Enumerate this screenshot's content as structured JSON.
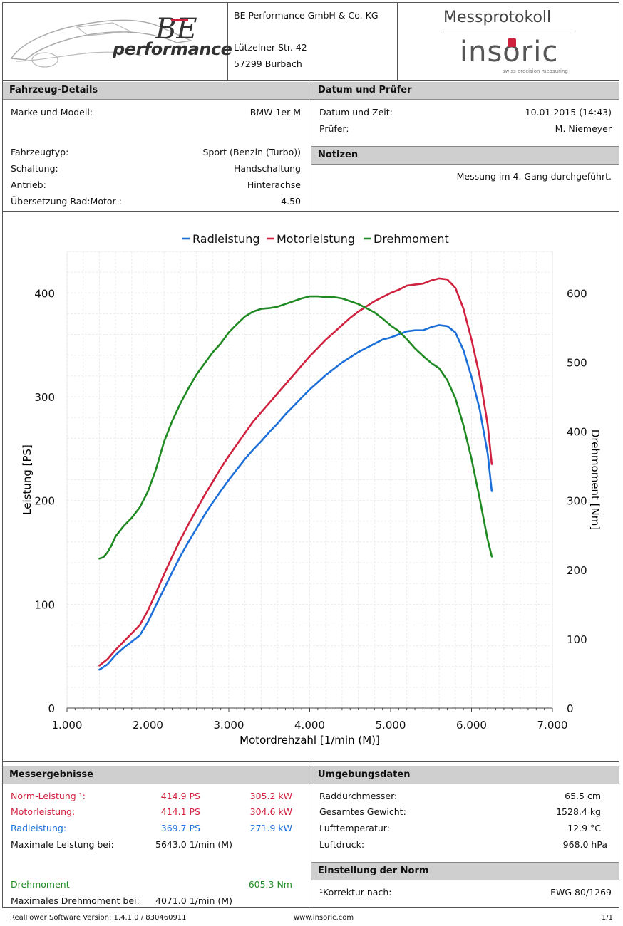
{
  "header": {
    "company_name": "BE Performance GmbH & Co. KG",
    "street": "Lützelner Str. 42",
    "city": "57299 Burbach",
    "logo_be": "BE",
    "logo_performance": "performance",
    "doc_title": "Messprotokoll",
    "brand": "insoric",
    "brand_tagline": "swiss precision measuring"
  },
  "vehicle": {
    "title": "Fahrzeug-Details",
    "make_label": "Marke und Modell:",
    "make_value": "BMW 1er M",
    "type_label": "Fahrzeugtyp:",
    "type_value": "Sport (Benzin (Turbo))",
    "gearbox_label": "Schaltung:",
    "gearbox_value": "Handschaltung",
    "drive_label": "Antrieb:",
    "drive_value": "Hinterachse",
    "ratio_label": "Übersetzung Rad:Motor :",
    "ratio_value": "4.50"
  },
  "date": {
    "title": "Datum und Prüfer",
    "datetime_label": "Datum und Zeit:",
    "datetime_value": "10.01.2015 (14:43)",
    "tester_label": "Prüfer:",
    "tester_value": "M. Niemeyer"
  },
  "notes": {
    "title": "Notizen",
    "text": "Messung im 4. Gang durchgeführt."
  },
  "chart_data": {
    "type": "line",
    "xlabel": "Motordrehzahl [1/min (M)]",
    "ylabel": "Leistung [PS]",
    "y2label": "Drehmoment [Nm]",
    "xlim": [
      1000,
      7000
    ],
    "ylim": [
      0,
      440
    ],
    "y2lim": [
      0,
      660
    ],
    "x_ticks": [
      1000,
      2000,
      3000,
      4000,
      5000,
      6000,
      7000
    ],
    "x_tick_labels": [
      "1.000",
      "2.000",
      "3.000",
      "4.000",
      "5.000",
      "6.000",
      "7.000"
    ],
    "y_ticks": [
      0,
      100,
      200,
      300,
      400
    ],
    "y_tick_labels": [
      "0",
      "100",
      "200",
      "300",
      "400"
    ],
    "y2_ticks": [
      0,
      100,
      200,
      300,
      400,
      500,
      600
    ],
    "y2_tick_labels": [
      "0",
      "100",
      "200",
      "300",
      "400",
      "500",
      "600"
    ],
    "legend_position": "top-center",
    "grid": true,
    "series": [
      {
        "name": "Radleistung",
        "color": "#1c6fd9",
        "axis": "left",
        "points": [
          [
            1400,
            37
          ],
          [
            1500,
            42
          ],
          [
            1600,
            51
          ],
          [
            1700,
            58
          ],
          [
            1800,
            64
          ],
          [
            1900,
            70
          ],
          [
            2000,
            83
          ],
          [
            2100,
            99
          ],
          [
            2200,
            115
          ],
          [
            2300,
            131
          ],
          [
            2400,
            146
          ],
          [
            2500,
            160
          ],
          [
            2600,
            173
          ],
          [
            2700,
            186
          ],
          [
            2800,
            198
          ],
          [
            2900,
            209
          ],
          [
            3000,
            220
          ],
          [
            3100,
            230
          ],
          [
            3200,
            240
          ],
          [
            3300,
            249
          ],
          [
            3400,
            257
          ],
          [
            3500,
            266
          ],
          [
            3600,
            274
          ],
          [
            3700,
            283
          ],
          [
            3800,
            291
          ],
          [
            3900,
            299
          ],
          [
            4000,
            307
          ],
          [
            4100,
            314
          ],
          [
            4200,
            321
          ],
          [
            4300,
            327
          ],
          [
            4400,
            333
          ],
          [
            4500,
            338
          ],
          [
            4600,
            343
          ],
          [
            4700,
            347
          ],
          [
            4800,
            351
          ],
          [
            4900,
            355
          ],
          [
            5000,
            357
          ],
          [
            5100,
            360
          ],
          [
            5200,
            363
          ],
          [
            5300,
            364
          ],
          [
            5400,
            364
          ],
          [
            5500,
            367
          ],
          [
            5600,
            369
          ],
          [
            5700,
            368
          ],
          [
            5800,
            362
          ],
          [
            5900,
            345
          ],
          [
            6000,
            319
          ],
          [
            6100,
            288
          ],
          [
            6200,
            245
          ],
          [
            6250,
            209
          ]
        ]
      },
      {
        "name": "Motorleistung",
        "color": "#d0213f",
        "axis": "left",
        "points": [
          [
            1400,
            41
          ],
          [
            1500,
            47
          ],
          [
            1600,
            56
          ],
          [
            1700,
            64
          ],
          [
            1800,
            72
          ],
          [
            1900,
            80
          ],
          [
            2000,
            94
          ],
          [
            2100,
            111
          ],
          [
            2200,
            129
          ],
          [
            2300,
            146
          ],
          [
            2400,
            162
          ],
          [
            2500,
            177
          ],
          [
            2600,
            191
          ],
          [
            2700,
            205
          ],
          [
            2800,
            218
          ],
          [
            2900,
            231
          ],
          [
            3000,
            243
          ],
          [
            3100,
            254
          ],
          [
            3200,
            265
          ],
          [
            3300,
            276
          ],
          [
            3400,
            285
          ],
          [
            3500,
            294
          ],
          [
            3600,
            303
          ],
          [
            3700,
            312
          ],
          [
            3800,
            321
          ],
          [
            3900,
            330
          ],
          [
            4000,
            339
          ],
          [
            4100,
            347
          ],
          [
            4200,
            355
          ],
          [
            4300,
            362
          ],
          [
            4400,
            369
          ],
          [
            4500,
            376
          ],
          [
            4600,
            382
          ],
          [
            4700,
            387
          ],
          [
            4800,
            392
          ],
          [
            4900,
            396
          ],
          [
            5000,
            400
          ],
          [
            5100,
            403
          ],
          [
            5200,
            407
          ],
          [
            5300,
            408
          ],
          [
            5400,
            409
          ],
          [
            5500,
            412
          ],
          [
            5600,
            414
          ],
          [
            5700,
            413
          ],
          [
            5800,
            405
          ],
          [
            5900,
            385
          ],
          [
            6000,
            355
          ],
          [
            6100,
            320
          ],
          [
            6200,
            273
          ],
          [
            6250,
            235
          ]
        ]
      },
      {
        "name": "Drehmoment",
        "color": "#1f8a22",
        "axis": "right",
        "points": [
          [
            1400,
            216
          ],
          [
            1450,
            218
          ],
          [
            1500,
            225
          ],
          [
            1550,
            235
          ],
          [
            1600,
            248
          ],
          [
            1700,
            263
          ],
          [
            1800,
            275
          ],
          [
            1900,
            290
          ],
          [
            2000,
            313
          ],
          [
            2100,
            345
          ],
          [
            2200,
            385
          ],
          [
            2300,
            415
          ],
          [
            2400,
            440
          ],
          [
            2500,
            462
          ],
          [
            2600,
            482
          ],
          [
            2700,
            498
          ],
          [
            2800,
            514
          ],
          [
            2900,
            527
          ],
          [
            3000,
            543
          ],
          [
            3100,
            555
          ],
          [
            3200,
            566
          ],
          [
            3300,
            573
          ],
          [
            3400,
            577
          ],
          [
            3500,
            578
          ],
          [
            3600,
            580
          ],
          [
            3700,
            584
          ],
          [
            3800,
            588
          ],
          [
            3900,
            592
          ],
          [
            4000,
            595
          ],
          [
            4100,
            595
          ],
          [
            4200,
            594
          ],
          [
            4300,
            594
          ],
          [
            4400,
            592
          ],
          [
            4500,
            588
          ],
          [
            4600,
            584
          ],
          [
            4700,
            578
          ],
          [
            4800,
            572
          ],
          [
            4900,
            563
          ],
          [
            5000,
            553
          ],
          [
            5100,
            545
          ],
          [
            5200,
            533
          ],
          [
            5300,
            520
          ],
          [
            5400,
            509
          ],
          [
            5500,
            499
          ],
          [
            5600,
            491
          ],
          [
            5700,
            474
          ],
          [
            5800,
            448
          ],
          [
            5900,
            409
          ],
          [
            6000,
            360
          ],
          [
            6100,
            303
          ],
          [
            6200,
            243
          ],
          [
            6250,
            219
          ]
        ]
      }
    ]
  },
  "results": {
    "title": "Messergebnisse",
    "norm_label": "Norm-Leistung ¹:",
    "norm_ps": "414.9 PS",
    "norm_kw": "305.2 kW",
    "motor_label": "Motorleistung:",
    "motor_ps": "414.1 PS",
    "motor_kw": "304.6 kW",
    "wheel_label": "Radleistung:",
    "wheel_ps": "369.7 PS",
    "wheel_kw": "271.9 kW",
    "maxpower_label": "Maximale Leistung bei:",
    "maxpower_value": "5643.0 1/min (M)",
    "torque_label": "Drehmoment",
    "torque_value": "605.3 Nm",
    "maxtorque_label": "Maximales Drehmoment bei:",
    "maxtorque_value": "4071.0 1/min (M)"
  },
  "environment": {
    "title": "Umgebungsdaten",
    "wheel_diam_label": "Raddurchmesser:",
    "wheel_diam_value": "65.5 cm",
    "weight_label": "Gesamtes Gewicht:",
    "weight_value": "1528.4 kg",
    "temp_label": "Lufttemperatur:",
    "temp_value": "12.9 °C",
    "pressure_label": "Luftdruck:",
    "pressure_value": "968.0 hPa"
  },
  "norm": {
    "title": "Einstellung der Norm",
    "label": "¹Korrektur nach:",
    "value": "EWG 80/1269"
  },
  "footer": {
    "version": "RealPower Software Version: 1.4.1.0 / 830460911",
    "website": "www.insoric.com",
    "page": "1/1"
  }
}
